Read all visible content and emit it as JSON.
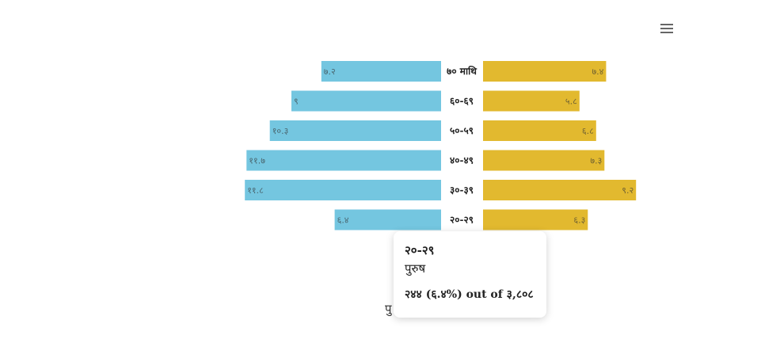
{
  "chart_data": {
    "type": "bar",
    "orientation": "horizontal",
    "layout": "population-pyramid",
    "categories": [
      "७० माथि",
      "६०-६९",
      "५०-५९",
      "४०-४९",
      "३०-३९",
      "२०-२९"
    ],
    "series": [
      {
        "name": "पुरुष",
        "side": "left",
        "color": "#74c6e0",
        "values": [
          7.2,
          9,
          10.3,
          11.7,
          11.8,
          6.4
        ],
        "labels": [
          "७.२",
          "९",
          "१०.३",
          "११.७",
          "११.८",
          "६.४"
        ]
      },
      {
        "side": "right",
        "color": "#e2b92f",
        "values": [
          7.4,
          5.8,
          6.8,
          7.3,
          9.2,
          6.3
        ],
        "labels": [
          "७.४",
          "५.८",
          "६.८",
          "७.३",
          "९.२",
          "६.३"
        ]
      }
    ],
    "grid": false,
    "legend_position": "bottom",
    "legend_visible_fragment": "पु"
  },
  "tooltip": {
    "category": "२०-२९",
    "series": "पुरुष",
    "value": "२४४ (६.४%) out of ३,८०८"
  },
  "menu_icon": "hamburger-menu-icon"
}
